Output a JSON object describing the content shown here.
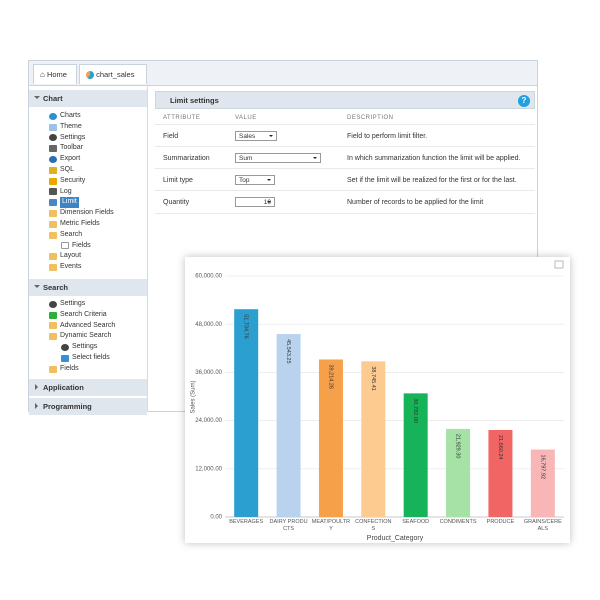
{
  "tabs": [
    "Home",
    "chart_sales"
  ],
  "sidebar": {
    "chart_section": {
      "title": "Chart",
      "items": [
        "Charts",
        "Theme",
        "Settings",
        "Toolbar",
        "Export",
        "SQL",
        "Security",
        "Log",
        "Limit",
        "Dimension Fields",
        "Metric Fields",
        "Search",
        "Fields",
        "Layout",
        "Events"
      ]
    },
    "search_section": {
      "title": "Search",
      "items": [
        "Settings",
        "Search Criteria",
        "Advanced Search",
        "Dynamic Search",
        "Settings",
        "Select fields",
        "Fields"
      ]
    },
    "application": "Application",
    "programming": "Programming"
  },
  "panel": {
    "title": "Limit settings",
    "help": "?",
    "columns": [
      "ATTRIBUTE",
      "VALUE",
      "DESCRIPTION"
    ],
    "rows": [
      [
        "Field",
        "Sales",
        "Field to perform limit filter."
      ],
      [
        "Summarization",
        "Sum",
        "In which summarization function the limit will be applied."
      ],
      [
        "Limit type",
        "Top",
        "Set if the limit will be realized for the first or for the last."
      ],
      [
        "Quantity",
        "10",
        "Number of records to be applied for the limit"
      ]
    ]
  },
  "chart": {
    "type": "bar",
    "x_label": "Product_Category",
    "y_label": "Sales (Sum)",
    "categories": [
      "BEVERAGES",
      "DAIRY PRODUCTS",
      "MEAT/POULTRY",
      "CONFECTIONS",
      "SEAFOOD",
      "CONDIMENTS",
      "PRODUCE",
      "GRAINS/CEREALS"
    ],
    "values": [
      51734.76,
      45543.25,
      39214.26,
      38745.41,
      30782.0,
      21929.3,
      21660.24,
      16797.92
    ],
    "value_labels": [
      "51,734.76",
      "45,543.25",
      "39,214.26",
      "38,745.41",
      "30,782.00",
      "21,929.30",
      "21,660.24",
      "16,797.92"
    ],
    "colors": [
      "#2b9fd0",
      "#b9d3ee",
      "#f7a04a",
      "#fdca90",
      "#16b358",
      "#a6e2a6",
      "#f26565",
      "#f8b6b6"
    ],
    "ylim": [
      0,
      60000
    ],
    "yticks": [
      {
        "value": 0,
        "label": "0.00"
      },
      {
        "value": 12000,
        "label": "12,000.00"
      },
      {
        "value": 24000,
        "label": "24,000.00"
      },
      {
        "value": 36000,
        "label": "36,000.00"
      },
      {
        "value": 48000,
        "label": "48,000.00"
      },
      {
        "value": 60000,
        "label": "60,000.00"
      }
    ],
    "grid": true
  }
}
